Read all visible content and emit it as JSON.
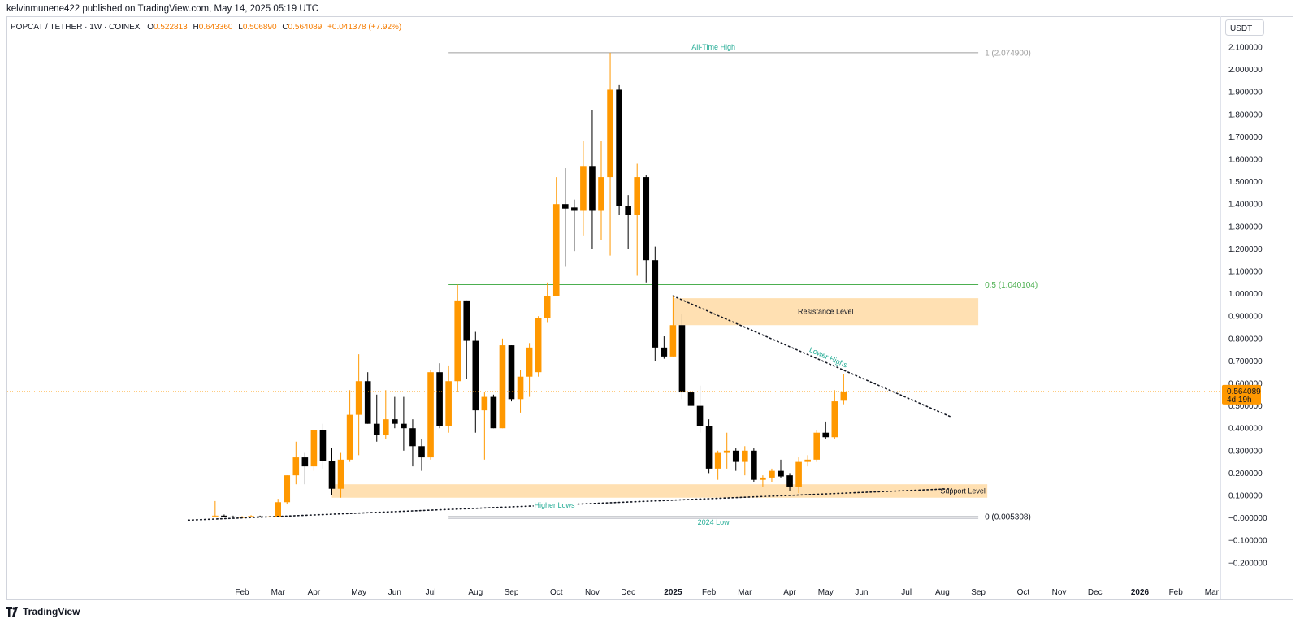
{
  "header": {
    "published_line": "kelvinmunene422 published on TradingView.com, May 14, 2025 05:19 UTC"
  },
  "colors": {
    "bull": "#ff9800",
    "bear": "#000000",
    "fib_gray": "#9e9e9e",
    "fib_green": "#4caf50",
    "zone": "#ffe0b2",
    "price_line": "#ff9800"
  },
  "chart_data": {
    "type": "candlestick",
    "symbol": "POPCAT / TETHER · 1W · COINEX",
    "ohlc_legend": {
      "o_label": "O",
      "o": "0.522813",
      "h_label": "H",
      "h": "0.643360",
      "l_label": "L",
      "l": "0.506890",
      "c_label": "C",
      "c": "0.564089",
      "change": "+0.041378 (+7.92%)"
    },
    "currency_label": "USDT",
    "y_ticks": [
      "2.100000",
      "2.000000",
      "1.900000",
      "1.800000",
      "1.700000",
      "1.600000",
      "1.500000",
      "1.400000",
      "1.300000",
      "1.200000",
      "1.100000",
      "1.000000",
      "0.900000",
      "0.800000",
      "0.700000",
      "0.600000",
      "0.500000",
      "0.400000",
      "0.300000",
      "0.200000",
      "0.100000",
      "−0.000000",
      "−0.100000",
      "−0.200000"
    ],
    "y_tick_values": [
      2.1,
      2.0,
      1.9,
      1.8,
      1.7,
      1.6,
      1.5,
      1.4,
      1.3,
      1.2,
      1.1,
      1.0,
      0.9,
      0.8,
      0.7,
      0.6,
      0.5,
      0.4,
      0.3,
      0.2,
      0.1,
      0.0,
      -0.1,
      -0.2
    ],
    "ylim": [
      -0.2,
      2.1
    ],
    "x_ticks": [
      {
        "label": "Feb",
        "week": 0,
        "bold": false
      },
      {
        "label": "Mar",
        "week": 4,
        "bold": false
      },
      {
        "label": "Apr",
        "week": 8,
        "bold": false
      },
      {
        "label": "May",
        "week": 13,
        "bold": false
      },
      {
        "label": "Jun",
        "week": 17,
        "bold": false
      },
      {
        "label": "Jul",
        "week": 21,
        "bold": false
      },
      {
        "label": "Aug",
        "week": 26,
        "bold": false
      },
      {
        "label": "Sep",
        "week": 30,
        "bold": false
      },
      {
        "label": "Oct",
        "week": 35,
        "bold": false
      },
      {
        "label": "Nov",
        "week": 39,
        "bold": false
      },
      {
        "label": "Dec",
        "week": 43,
        "bold": false
      },
      {
        "label": "2025",
        "week": 48,
        "bold": true
      },
      {
        "label": "Feb",
        "week": 52,
        "bold": false
      },
      {
        "label": "Mar",
        "week": 56,
        "bold": false
      },
      {
        "label": "Apr",
        "week": 61,
        "bold": false
      },
      {
        "label": "May",
        "week": 65,
        "bold": false
      },
      {
        "label": "Jun",
        "week": 69,
        "bold": false
      },
      {
        "label": "Jul",
        "week": 74,
        "bold": false
      },
      {
        "label": "Aug",
        "week": 78,
        "bold": false
      },
      {
        "label": "Sep",
        "week": 82,
        "bold": false
      },
      {
        "label": "Oct",
        "week": 87,
        "bold": false
      },
      {
        "label": "Nov",
        "week": 91,
        "bold": false
      },
      {
        "label": "Dec",
        "week": 95,
        "bold": false
      },
      {
        "label": "2026",
        "week": 100,
        "bold": true
      },
      {
        "label": "Feb",
        "week": 104,
        "bold": false
      },
      {
        "label": "Mar",
        "week": 108,
        "bold": false
      }
    ],
    "candles": [
      {
        "w": -3,
        "o": 0.008,
        "h": 0.075,
        "l": 0.006,
        "c": 0.01
      },
      {
        "w": -2,
        "o": 0.01,
        "h": 0.015,
        "l": 0.004,
        "c": 0.006
      },
      {
        "w": -1,
        "o": 0.006,
        "h": 0.01,
        "l": 0.0,
        "c": 0.003
      },
      {
        "w": 0,
        "o": 0.003,
        "h": 0.008,
        "l": 0.0,
        "c": 0.004
      },
      {
        "w": 1,
        "o": 0.004,
        "h": 0.012,
        "l": 0.002,
        "c": 0.008
      },
      {
        "w": 2,
        "o": 0.007,
        "h": 0.01,
        "l": 0.002,
        "c": 0.004
      },
      {
        "w": 3,
        "o": 0.004,
        "h": 0.008,
        "l": 0.002,
        "c": 0.006
      },
      {
        "w": 4,
        "o": 0.006,
        "h": 0.085,
        "l": 0.004,
        "c": 0.07
      },
      {
        "w": 5,
        "o": 0.07,
        "h": 0.19,
        "l": 0.06,
        "c": 0.19
      },
      {
        "w": 6,
        "o": 0.19,
        "h": 0.34,
        "l": 0.15,
        "c": 0.27
      },
      {
        "w": 7,
        "o": 0.27,
        "h": 0.29,
        "l": 0.15,
        "c": 0.23
      },
      {
        "w": 8,
        "o": 0.23,
        "h": 0.39,
        "l": 0.21,
        "c": 0.39
      },
      {
        "w": 9,
        "o": 0.39,
        "h": 0.42,
        "l": 0.22,
        "c": 0.255
      },
      {
        "w": 10,
        "o": 0.255,
        "h": 0.31,
        "l": 0.1,
        "c": 0.13
      },
      {
        "w": 11,
        "o": 0.13,
        "h": 0.29,
        "l": 0.09,
        "c": 0.26
      },
      {
        "w": 12,
        "o": 0.26,
        "h": 0.57,
        "l": 0.25,
        "c": 0.46
      },
      {
        "w": 13,
        "o": 0.46,
        "h": 0.73,
        "l": 0.28,
        "c": 0.61
      },
      {
        "w": 14,
        "o": 0.61,
        "h": 0.65,
        "l": 0.42,
        "c": 0.42
      },
      {
        "w": 15,
        "o": 0.42,
        "h": 0.55,
        "l": 0.34,
        "c": 0.37
      },
      {
        "w": 16,
        "o": 0.37,
        "h": 0.57,
        "l": 0.35,
        "c": 0.44
      },
      {
        "w": 17,
        "o": 0.44,
        "h": 0.54,
        "l": 0.4,
        "c": 0.42
      },
      {
        "w": 18,
        "o": 0.42,
        "h": 0.54,
        "l": 0.3,
        "c": 0.4
      },
      {
        "w": 19,
        "o": 0.4,
        "h": 0.44,
        "l": 0.23,
        "c": 0.32
      },
      {
        "w": 20,
        "o": 0.32,
        "h": 0.35,
        "l": 0.21,
        "c": 0.27
      },
      {
        "w": 21,
        "o": 0.27,
        "h": 0.66,
        "l": 0.26,
        "c": 0.65
      },
      {
        "w": 22,
        "o": 0.65,
        "h": 0.69,
        "l": 0.4,
        "c": 0.41
      },
      {
        "w": 23,
        "o": 0.41,
        "h": 0.68,
        "l": 0.38,
        "c": 0.61
      },
      {
        "w": 24,
        "o": 0.61,
        "h": 1.04,
        "l": 0.56,
        "c": 0.97
      },
      {
        "w": 25,
        "o": 0.97,
        "h": 0.97,
        "l": 0.62,
        "c": 0.79
      },
      {
        "w": 26,
        "o": 0.79,
        "h": 0.83,
        "l": 0.38,
        "c": 0.48
      },
      {
        "w": 27,
        "o": 0.48,
        "h": 0.56,
        "l": 0.26,
        "c": 0.54
      },
      {
        "w": 28,
        "o": 0.54,
        "h": 0.55,
        "l": 0.4,
        "c": 0.4
      },
      {
        "w": 29,
        "o": 0.4,
        "h": 0.8,
        "l": 0.4,
        "c": 0.77
      },
      {
        "w": 30,
        "o": 0.77,
        "h": 0.77,
        "l": 0.52,
        "c": 0.53
      },
      {
        "w": 31,
        "o": 0.53,
        "h": 0.66,
        "l": 0.47,
        "c": 0.63
      },
      {
        "w": 32,
        "o": 0.63,
        "h": 0.78,
        "l": 0.54,
        "c": 0.76
      },
      {
        "w": 33,
        "o": 0.65,
        "h": 0.9,
        "l": 0.63,
        "c": 0.89
      },
      {
        "w": 34,
        "o": 0.89,
        "h": 1.05,
        "l": 0.87,
        "c": 0.99
      },
      {
        "w": 35,
        "o": 0.99,
        "h": 1.52,
        "l": 0.99,
        "c": 1.4
      },
      {
        "w": 36,
        "o": 1.4,
        "h": 1.56,
        "l": 1.12,
        "c": 1.38
      },
      {
        "w": 37,
        "o": 1.385,
        "h": 1.42,
        "l": 1.19,
        "c": 1.37
      },
      {
        "w": 38,
        "o": 1.37,
        "h": 1.68,
        "l": 1.26,
        "c": 1.57
      },
      {
        "w": 39,
        "o": 1.57,
        "h": 1.82,
        "l": 1.2,
        "c": 1.37
      },
      {
        "w": 40,
        "o": 1.37,
        "h": 1.68,
        "l": 1.24,
        "c": 1.52
      },
      {
        "w": 41,
        "o": 1.52,
        "h": 2.075,
        "l": 1.17,
        "c": 1.91
      },
      {
        "w": 42,
        "o": 1.91,
        "h": 1.93,
        "l": 1.35,
        "c": 1.39
      },
      {
        "w": 43,
        "o": 1.39,
        "h": 1.44,
        "l": 1.2,
        "c": 1.35
      },
      {
        "w": 44,
        "o": 1.35,
        "h": 1.58,
        "l": 1.08,
        "c": 1.52
      },
      {
        "w": 45,
        "o": 1.52,
        "h": 1.53,
        "l": 1.05,
        "c": 1.15
      },
      {
        "w": 46,
        "o": 1.15,
        "h": 1.21,
        "l": 0.7,
        "c": 0.76
      },
      {
        "w": 47,
        "o": 0.76,
        "h": 0.81,
        "l": 0.71,
        "c": 0.72
      },
      {
        "w": 48,
        "o": 0.72,
        "h": 0.99,
        "l": 0.72,
        "c": 0.86
      },
      {
        "w": 49,
        "o": 0.86,
        "h": 0.91,
        "l": 0.53,
        "c": 0.56
      },
      {
        "w": 50,
        "o": 0.56,
        "h": 0.63,
        "l": 0.49,
        "c": 0.5
      },
      {
        "w": 51,
        "o": 0.5,
        "h": 0.59,
        "l": 0.38,
        "c": 0.41
      },
      {
        "w": 52,
        "o": 0.41,
        "h": 0.44,
        "l": 0.2,
        "c": 0.22
      },
      {
        "w": 53,
        "o": 0.22,
        "h": 0.3,
        "l": 0.17,
        "c": 0.29
      },
      {
        "w": 54,
        "o": 0.29,
        "h": 0.38,
        "l": 0.22,
        "c": 0.3
      },
      {
        "w": 55,
        "o": 0.3,
        "h": 0.31,
        "l": 0.21,
        "c": 0.25
      },
      {
        "w": 56,
        "o": 0.25,
        "h": 0.32,
        "l": 0.19,
        "c": 0.3
      },
      {
        "w": 57,
        "o": 0.3,
        "h": 0.31,
        "l": 0.16,
        "c": 0.17
      },
      {
        "w": 58,
        "o": 0.17,
        "h": 0.19,
        "l": 0.14,
        "c": 0.18
      },
      {
        "w": 59,
        "o": 0.18,
        "h": 0.22,
        "l": 0.16,
        "c": 0.21
      },
      {
        "w": 60,
        "o": 0.21,
        "h": 0.26,
        "l": 0.18,
        "c": 0.185
      },
      {
        "w": 61,
        "o": 0.19,
        "h": 0.2,
        "l": 0.12,
        "c": 0.14
      },
      {
        "w": 62,
        "o": 0.14,
        "h": 0.27,
        "l": 0.11,
        "c": 0.25
      },
      {
        "w": 63,
        "o": 0.25,
        "h": 0.28,
        "l": 0.23,
        "c": 0.26
      },
      {
        "w": 64,
        "o": 0.26,
        "h": 0.39,
        "l": 0.25,
        "c": 0.38
      },
      {
        "w": 65,
        "o": 0.38,
        "h": 0.43,
        "l": 0.35,
        "c": 0.36
      },
      {
        "w": 66,
        "o": 0.36,
        "h": 0.57,
        "l": 0.35,
        "c": 0.52
      },
      {
        "w": 67,
        "o": 0.522813,
        "h": 0.64336,
        "l": 0.50689,
        "c": 0.564089
      }
    ],
    "current_price": {
      "value": 0.564089,
      "label": "0.564089",
      "countdown": "4d 19h"
    },
    "fib_levels": [
      {
        "value": 2.0749,
        "label": "1 (2.074900)",
        "annotation": "All-Time High",
        "color": "#9e9e9e"
      },
      {
        "value": 1.040104,
        "label": "0.5 (1.040104)",
        "annotation": "",
        "color": "#4caf50"
      },
      {
        "value": 0.005308,
        "label": "0 (0.005308)",
        "annotation": "2024 Low",
        "color": "#787b86"
      }
    ],
    "zones": [
      {
        "label": "Resistance Level",
        "from_week": 48,
        "to_week": 82,
        "top": 0.98,
        "bottom": 0.86
      },
      {
        "label": "Support Level",
        "from_week": 10,
        "to_week": 83,
        "top": 0.15,
        "bottom": 0.09
      }
    ],
    "trendlines": [
      {
        "label": "Lower Highs",
        "w1": 48,
        "v1": 0.99,
        "w2": 79,
        "v2": 0.45
      },
      {
        "label": "Higher Lows",
        "w1": -6,
        "v1": -0.01,
        "w2": 79,
        "v2": 0.13
      }
    ]
  },
  "footer": {
    "logo_text": "TradingView"
  }
}
